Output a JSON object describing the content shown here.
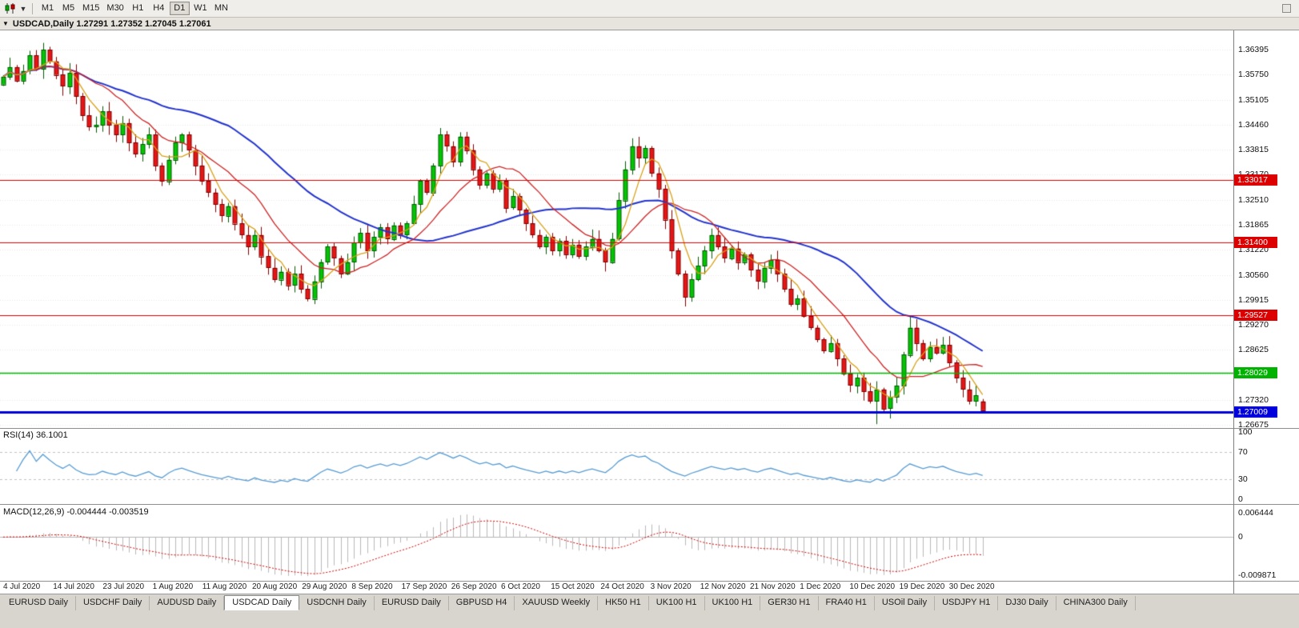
{
  "toolbar": {
    "timeframes": [
      "M1",
      "M5",
      "M15",
      "M30",
      "H1",
      "H4",
      "D1",
      "W1",
      "MN"
    ],
    "active": "D1"
  },
  "chart_window": {
    "title": "USDCAD,Daily 1.27291 1.27352 1.27045 1.27061"
  },
  "indicators": {
    "rsi_label": "RSI(14) 36.1001",
    "macd_label": "MACD(12,26,9) -0.004444 -0.003519"
  },
  "chart_data": {
    "type": "candlestick",
    "symbol": "USDCAD",
    "timeframe": "Daily",
    "ohlc_current": {
      "open": 1.27291,
      "high": 1.27352,
      "low": 1.27045,
      "close": 1.27061
    },
    "first_open": 1.355,
    "closes": [
      1.357,
      1.3595,
      1.356,
      1.3585,
      1.3625,
      1.359,
      1.364,
      1.361,
      1.3575,
      1.3545,
      1.358,
      1.352,
      1.347,
      1.344,
      1.3445,
      1.348,
      1.3445,
      1.342,
      1.345,
      1.34,
      1.337,
      1.3395,
      1.342,
      1.334,
      1.33,
      1.3355,
      1.34,
      1.342,
      1.338,
      1.334,
      1.33,
      1.327,
      1.324,
      1.321,
      1.3235,
      1.319,
      1.316,
      1.313,
      1.316,
      1.3105,
      1.3075,
      1.3045,
      1.3065,
      1.303,
      1.306,
      1.302,
      1.2995,
      1.304,
      1.309,
      1.313,
      1.31,
      1.306,
      1.309,
      1.314,
      1.3165,
      1.312,
      1.3155,
      1.318,
      1.315,
      1.3185,
      1.316,
      1.319,
      1.324,
      1.33,
      1.327,
      1.334,
      1.342,
      1.339,
      1.335,
      1.3415,
      1.338,
      1.333,
      1.329,
      1.332,
      1.328,
      1.33,
      1.323,
      1.326,
      1.3225,
      1.319,
      1.316,
      1.313,
      1.3155,
      1.312,
      1.3145,
      1.311,
      1.3135,
      1.3105,
      1.313,
      1.315,
      1.312,
      1.309,
      1.315,
      1.325,
      1.333,
      1.339,
      1.336,
      1.3385,
      1.332,
      1.328,
      1.32,
      1.312,
      1.306,
      1.3,
      1.3045,
      1.308,
      1.312,
      1.316,
      1.313,
      1.31,
      1.3125,
      1.309,
      1.311,
      1.307,
      1.304,
      1.3075,
      1.3095,
      1.306,
      1.302,
      1.298,
      1.2995,
      1.295,
      1.292,
      1.289,
      1.286,
      1.288,
      1.284,
      1.28,
      1.277,
      1.279,
      1.2755,
      1.273,
      1.276,
      1.271,
      1.274,
      1.277,
      1.285,
      1.292,
      1.288,
      1.284,
      1.287,
      1.2855,
      1.2875,
      1.283,
      1.279,
      1.276,
      1.273,
      1.2745,
      1.2729
    ],
    "wick_overrides": {
      "46": {
        "low": 1.2988
      },
      "132": {
        "low": 1.267
      },
      "137": {
        "high": 1.2952
      }
    },
    "x_dates": [
      "4 Jul 2020",
      "14 Jul 2020",
      "23 Jul 2020",
      "1 Aug 2020",
      "11 Aug 2020",
      "20 Aug 2020",
      "29 Aug 2020",
      "8 Sep 2020",
      "17 Sep 2020",
      "26 Sep 2020",
      "6 Oct 2020",
      "15 Oct 2020",
      "24 Oct 2020",
      "3 Nov 2020",
      "12 Nov 2020",
      "21 Nov 2020",
      "1 Dec 2020",
      "10 Dec 2020",
      "19 Dec 2020",
      "30 Dec 2020"
    ],
    "price_ticks": [
      "1.36395",
      "1.35750",
      "1.35105",
      "1.34460",
      "1.33815",
      "1.33170",
      "1.32510",
      "1.31865",
      "1.31220",
      "1.30560",
      "1.29915",
      "1.29270",
      "1.28625",
      "1.27980",
      "1.27320",
      "1.26675"
    ],
    "hlines": [
      {
        "label": "1.33017",
        "price": 1.33017,
        "color": "#dd0000",
        "width": 1.2
      },
      {
        "label": "1.31400",
        "price": 1.314,
        "color": "#dd0000",
        "width": 1.2
      },
      {
        "label": "1.29527",
        "price": 1.29527,
        "color": "#dd0000",
        "width": 1.2
      },
      {
        "label": "1.28029",
        "price": 1.28029,
        "color": "#00b300",
        "width": 1.6
      },
      {
        "label": "1.27009",
        "price": 1.27009,
        "color": "#0000dd",
        "width": 3
      }
    ],
    "moving_averages": [
      {
        "period": 35,
        "color": "#2233cc",
        "width": 2
      },
      {
        "period": 13,
        "color": "#cc2222",
        "width": 1.3
      },
      {
        "period": 5,
        "color": "#d8a018",
        "width": 1.3
      }
    ],
    "candle_colors": {
      "up_fill": "#02c602",
      "up_stroke": "#015a01",
      "down_fill": "#e81515",
      "down_stroke": "#7d0000"
    },
    "rsi": {
      "period": 14,
      "current": 36.1001,
      "levels": [
        70,
        30
      ],
      "ticks": [
        "100",
        "70",
        "30",
        "0"
      ],
      "color": "#569bd2"
    },
    "macd": {
      "fast": 12,
      "slow": 26,
      "signal": 9,
      "current_main": -0.004444,
      "current_signal": -0.003519,
      "ticks": [
        "0.006444",
        "0",
        "-0.009871"
      ],
      "range": [
        -0.009871,
        0.006444
      ],
      "histogram_color": "#b8b8b8",
      "signal_color": "#cc0000"
    }
  },
  "bottom_tabs": {
    "active": "USDCAD Daily",
    "items": [
      "EURUSD Daily",
      "USDCHF Daily",
      "AUDUSD Daily",
      "USDCAD Daily",
      "USDCNH Daily",
      "EURUSD Daily",
      "GBPUSD H4",
      "XAUUSD Weekly",
      "HK50 H1",
      "UK100 H1",
      "UK100 H1",
      "GER30 H1",
      "FRA40 H1",
      "USOil Daily",
      "USDJPY H1",
      "DJ30 Daily",
      "CHINA300 Daily"
    ]
  }
}
